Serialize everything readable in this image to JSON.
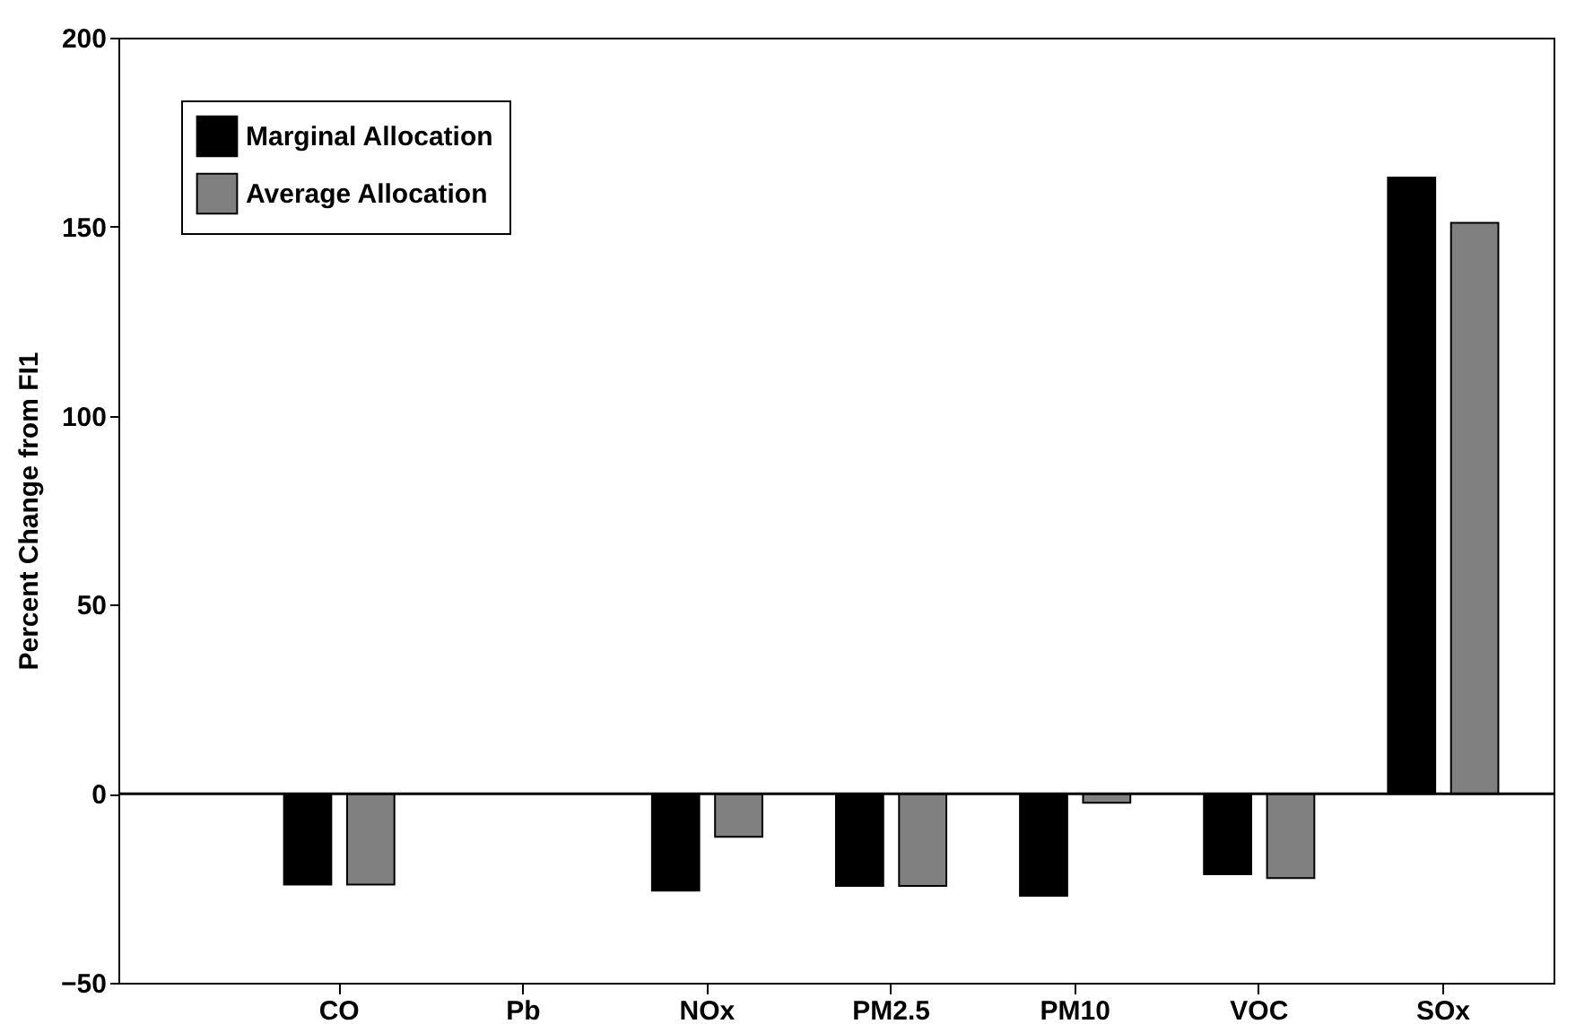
{
  "chart_data": {
    "type": "bar",
    "ylabel": "Percent Change from FI1",
    "categories": [
      "CO",
      "Pb",
      "NOx",
      "PM2.5",
      "PM10",
      "VOC",
      "SOx"
    ],
    "series": [
      {
        "name": "Marginal Allocation",
        "color": "#000000",
        "values": [
          -24,
          0,
          -25.6,
          -24.4,
          -27,
          -21.3,
          163
        ]
      },
      {
        "name": "Average Allocation",
        "color": "#808080",
        "values": [
          -24,
          0,
          -11.4,
          -24.4,
          -2.4,
          -22.3,
          151
        ]
      }
    ],
    "ylim": [
      -50,
      200
    ],
    "yticks": [
      -50,
      0,
      50,
      100,
      150,
      200
    ],
    "ref_lines": [
      {
        "axis": "y",
        "value": 0
      }
    ],
    "legend": "top left",
    "grid": false
  }
}
